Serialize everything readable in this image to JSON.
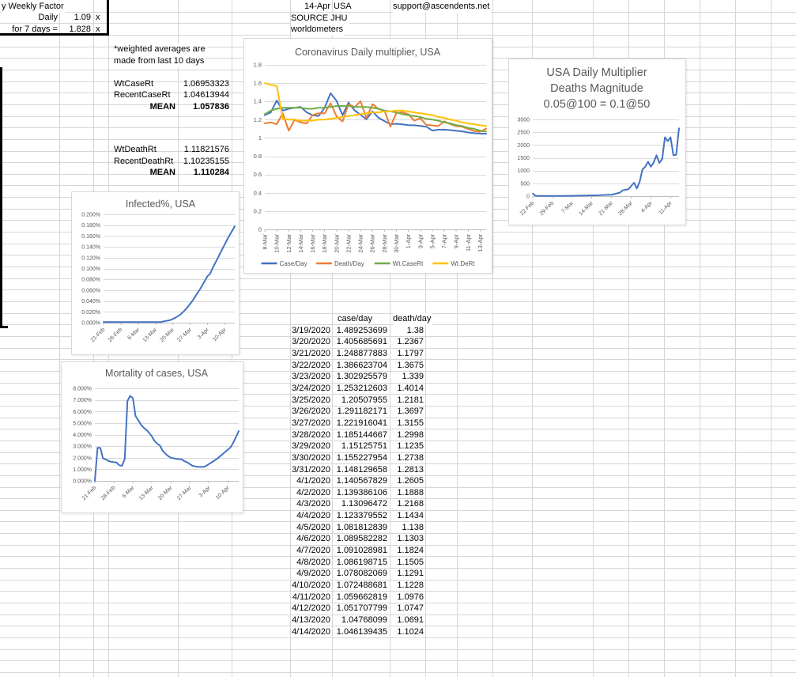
{
  "sheet": {
    "weekly_factor": {
      "title": "y Weekly Factor",
      "daily_label": "Daily",
      "daily_value": "1.09",
      "daily_unit": "x",
      "days7_label": "for 7 days =",
      "days7_value": "1.828",
      "days7_unit": "x"
    },
    "header": {
      "date": "14-Apr",
      "country": "USA",
      "support": "support@ascendents.net",
      "source": "SOURCE JHU",
      "source2": "worldometers"
    },
    "notes": {
      "line1": "*weighted averages are",
      "line2": "made from last 10 days"
    },
    "case_stats": {
      "l1": "WtCaseRt",
      "v1": "1.06953323",
      "l2": "RecentCaseRt",
      "v2": "1.04613944",
      "mean_label": "MEAN",
      "mean_value": "1.057836"
    },
    "death_stats": {
      "l1": "WtDeathRt",
      "v1": "1.11821576",
      "l2": "RecentDeathRt",
      "v2": "1.10235155",
      "mean_label": "MEAN",
      "mean_value": "1.110284"
    },
    "table": {
      "col_case": "case/day",
      "col_death": "death/day",
      "rows": [
        [
          "3/19/2020",
          "1.489253699",
          "1.38"
        ],
        [
          "3/20/2020",
          "1.405685691",
          "1.2367"
        ],
        [
          "3/21/2020",
          "1.248877883",
          "1.1797"
        ],
        [
          "3/22/2020",
          "1.386623704",
          "1.3675"
        ],
        [
          "3/23/2020",
          "1.302925579",
          "1.339"
        ],
        [
          "3/24/2020",
          "1.253212603",
          "1.4014"
        ],
        [
          "3/25/2020",
          "1.20507955",
          "1.2181"
        ],
        [
          "3/26/2020",
          "1.291182171",
          "1.3697"
        ],
        [
          "3/27/2020",
          "1.221916041",
          "1.3155"
        ],
        [
          "3/28/2020",
          "1.185144667",
          "1.2998"
        ],
        [
          "3/29/2020",
          "1.15125751",
          "1.1235"
        ],
        [
          "3/30/2020",
          "1.155227954",
          "1.2738"
        ],
        [
          "3/31/2020",
          "1.148129658",
          "1.2813"
        ],
        [
          "4/1/2020",
          "1.140567829",
          "1.2605"
        ],
        [
          "4/2/2020",
          "1.139386106",
          "1.1888"
        ],
        [
          "4/3/2020",
          "1.13096472",
          "1.2168"
        ],
        [
          "4/4/2020",
          "1.123379552",
          "1.1434"
        ],
        [
          "4/5/2020",
          "1.081812839",
          "1.138"
        ],
        [
          "4/6/2020",
          "1.089582282",
          "1.1303"
        ],
        [
          "4/7/2020",
          "1.091028981",
          "1.1824"
        ],
        [
          "4/8/2020",
          "1.086198715",
          "1.1505"
        ],
        [
          "4/9/2020",
          "1.078082069",
          "1.1291"
        ],
        [
          "4/10/2020",
          "1.072488681",
          "1.1228"
        ],
        [
          "4/11/2020",
          "1.059662819",
          "1.0976"
        ],
        [
          "4/12/2020",
          "1.051707799",
          "1.0747"
        ],
        [
          "4/13/2020",
          "1.04768099",
          "1.0691"
        ],
        [
          "4/14/2020",
          "1.046139435",
          "1.1024"
        ]
      ]
    }
  },
  "colors": {
    "case": "#4472C4",
    "death": "#ED7C31",
    "wtcase": "#70AD47",
    "wtde": "#FFC000",
    "chart_grid": "#d9d9d9",
    "axis": "#bfbfbf",
    "chart_text": "#595959",
    "sheet_grid": "#d6d6d6"
  },
  "chart_data": [
    {
      "type": "line",
      "title": "Coronavirus Daily multiplier, USA",
      "ylim": [
        0,
        1.8
      ],
      "y_ticks": [
        0,
        0.2,
        0.4,
        0.6,
        0.8,
        1,
        1.2,
        1.4,
        1.6,
        1.8
      ],
      "y_tick_labels": [
        "0",
        "0.2",
        "0.4",
        "0.6",
        "0.8",
        "1",
        "1.2",
        "1.4",
        "1.6",
        "1.8"
      ],
      "x_ticks": [
        {
          "i": 0,
          "label": "8-Mar"
        },
        {
          "i": 2,
          "label": "10-Mar"
        },
        {
          "i": 4,
          "label": "12-Mar"
        },
        {
          "i": 6,
          "label": "14-Mar"
        },
        {
          "i": 8,
          "label": "16-Mar"
        },
        {
          "i": 10,
          "label": "18-Mar"
        },
        {
          "i": 12,
          "label": "20-Mar"
        },
        {
          "i": 14,
          "label": "22-Mar"
        },
        {
          "i": 16,
          "label": "24-Mar"
        },
        {
          "i": 18,
          "label": "26-Mar"
        },
        {
          "i": 20,
          "label": "28-Mar"
        },
        {
          "i": 22,
          "label": "30-Mar"
        },
        {
          "i": 24,
          "label": "1-Apr"
        },
        {
          "i": 26,
          "label": "3-Apr"
        },
        {
          "i": 28,
          "label": "5-Apr"
        },
        {
          "i": 30,
          "label": "7-Apr"
        },
        {
          "i": 32,
          "label": "9-Apr"
        },
        {
          "i": 34,
          "label": "11-Apr"
        },
        {
          "i": 36,
          "label": "13-Apr"
        }
      ],
      "legend_position": "bottom",
      "series": [
        {
          "name": "Case/Day",
          "color": "#4472C4",
          "values": [
            1.25,
            1.28,
            1.41,
            1.3,
            1.32,
            1.33,
            1.34,
            1.28,
            1.25,
            1.24,
            1.33,
            1.489,
            1.406,
            1.249,
            1.387,
            1.303,
            1.253,
            1.205,
            1.291,
            1.222,
            1.185,
            1.151,
            1.155,
            1.148,
            1.141,
            1.139,
            1.131,
            1.123,
            1.082,
            1.09,
            1.091,
            1.086,
            1.078,
            1.072,
            1.06,
            1.052,
            1.048,
            1.046
          ]
        },
        {
          "name": "Death/Day",
          "color": "#ED7C31",
          "values": [
            1.16,
            1.17,
            1.15,
            1.27,
            1.08,
            1.2,
            1.17,
            1.16,
            1.25,
            1.27,
            1.27,
            1.38,
            1.237,
            1.18,
            1.368,
            1.339,
            1.401,
            1.218,
            1.37,
            1.316,
            1.3,
            1.124,
            1.274,
            1.281,
            1.261,
            1.189,
            1.217,
            1.143,
            1.138,
            1.13,
            1.182,
            1.151,
            1.129,
            1.123,
            1.098,
            1.075,
            1.069,
            1.102
          ]
        },
        {
          "name": "Wt.CaseRt",
          "color": "#70AD47",
          "values": [
            1.26,
            1.3,
            1.32,
            1.33,
            1.33,
            1.33,
            1.33,
            1.32,
            1.32,
            1.33,
            1.33,
            1.34,
            1.35,
            1.35,
            1.35,
            1.34,
            1.34,
            1.34,
            1.33,
            1.32,
            1.3,
            1.29,
            1.28,
            1.26,
            1.25,
            1.24,
            1.23,
            1.21,
            1.2,
            1.19,
            1.17,
            1.16,
            1.14,
            1.13,
            1.11,
            1.1,
            1.08,
            1.07
          ]
        },
        {
          "name": "Wt.DeRt",
          "color": "#FFC000",
          "values": [
            1.6,
            1.58,
            1.57,
            1.21,
            1.2,
            1.2,
            1.19,
            1.19,
            1.19,
            1.2,
            1.2,
            1.21,
            1.22,
            1.23,
            1.24,
            1.25,
            1.26,
            1.27,
            1.28,
            1.28,
            1.29,
            1.29,
            1.3,
            1.3,
            1.29,
            1.28,
            1.27,
            1.26,
            1.25,
            1.23,
            1.22,
            1.2,
            1.19,
            1.17,
            1.16,
            1.15,
            1.14,
            1.13
          ]
        }
      ]
    },
    {
      "type": "line",
      "title_lines": [
        "USA Daily Multiplier",
        "Deaths Magnitude",
        "0.05@100 = 0.1@50"
      ],
      "ylim": [
        0,
        3000
      ],
      "y_ticks": [
        0,
        500,
        1000,
        1500,
        2000,
        2500,
        3000
      ],
      "y_tick_labels": [
        "0",
        "500",
        "1000",
        "1500",
        "2000",
        "2500",
        "3000"
      ],
      "x_ticks": [
        {
          "i": 0,
          "label": "22-Feb"
        },
        {
          "i": 7,
          "label": "29-Feb"
        },
        {
          "i": 14,
          "label": "7-Mar"
        },
        {
          "i": 21,
          "label": "14-Mar"
        },
        {
          "i": 28,
          "label": "21-Mar"
        },
        {
          "i": 35,
          "label": "28-Mar"
        },
        {
          "i": 42,
          "label": "4-Apr"
        },
        {
          "i": 49,
          "label": "11-Apr"
        }
      ],
      "series": [
        {
          "name": "Deaths Magnitude",
          "color": "#4472C4",
          "values": [
            100,
            15,
            8,
            8,
            8,
            8,
            8,
            10,
            10,
            10,
            10,
            12,
            12,
            12,
            15,
            15,
            18,
            20,
            22,
            25,
            28,
            30,
            32,
            35,
            40,
            45,
            50,
            55,
            60,
            80,
            110,
            140,
            225,
            250,
            270,
            400,
            525,
            300,
            560,
            1050,
            1150,
            1344,
            1150,
            1320,
            1600,
            1300,
            1450,
            2300,
            2150,
            2300,
            1600,
            1620,
            2650
          ]
        }
      ]
    },
    {
      "type": "line",
      "title": "Infected%, USA",
      "ylim": [
        0,
        0.2
      ],
      "y_ticks": [
        0,
        0.02,
        0.04,
        0.06,
        0.08,
        0.1,
        0.12,
        0.14,
        0.16,
        0.18,
        0.2
      ],
      "y_tick_labels": [
        "0.000%",
        "0.020%",
        "0.040%",
        "0.060%",
        "0.080%",
        "0.100%",
        "0.120%",
        "0.140%",
        "0.160%",
        "0.180%",
        "0.200%"
      ],
      "x_ticks": [
        {
          "i": 0,
          "label": "21-Feb"
        },
        {
          "i": 7,
          "label": "28-Feb"
        },
        {
          "i": 14,
          "label": "6-Mar"
        },
        {
          "i": 21,
          "label": "13-Mar"
        },
        {
          "i": 28,
          "label": "20-Mar"
        },
        {
          "i": 35,
          "label": "27-Mar"
        },
        {
          "i": 42,
          "label": "3-Apr"
        },
        {
          "i": 49,
          "label": "10-Apr"
        }
      ],
      "series": [
        {
          "name": "Infected%",
          "color": "#4472C4",
          "values": [
            0.001,
            0.001,
            0.001,
            0.001,
            0.001,
            0.001,
            0.001,
            0.001,
            0.001,
            0.001,
            0.001,
            0.001,
            0.001,
            0.001,
            0.001,
            0.001,
            0.001,
            0.001,
            0.001,
            0.001,
            0.001,
            0.001,
            0.001,
            0.001,
            0.002,
            0.003,
            0.004,
            0.005,
            0.007,
            0.009,
            0.012,
            0.015,
            0.019,
            0.024,
            0.029,
            0.035,
            0.041,
            0.048,
            0.055,
            0.062,
            0.07,
            0.078,
            0.086,
            0.09,
            0.1,
            0.109,
            0.118,
            0.127,
            0.136,
            0.145,
            0.154,
            0.162,
            0.17,
            0.178
          ]
        }
      ]
    },
    {
      "type": "line",
      "title": "Mortality of cases, USA",
      "ylim": [
        0,
        8
      ],
      "y_ticks": [
        0,
        1,
        2,
        3,
        4,
        5,
        6,
        7,
        8
      ],
      "y_tick_labels": [
        "0.000%",
        "1.000%",
        "2.000%",
        "3.000%",
        "4.000%",
        "5.000%",
        "6.000%",
        "7.000%",
        "8.000%"
      ],
      "x_ticks": [
        {
          "i": 0,
          "label": "21-Feb"
        },
        {
          "i": 7,
          "label": "28-Feb"
        },
        {
          "i": 14,
          "label": "6-Mar"
        },
        {
          "i": 21,
          "label": "13-Mar"
        },
        {
          "i": 28,
          "label": "20-Mar"
        },
        {
          "i": 35,
          "label": "27-Mar"
        },
        {
          "i": 42,
          "label": "3-Apr"
        },
        {
          "i": 49,
          "label": "10-Apr"
        }
      ],
      "series": [
        {
          "name": "Mortality",
          "color": "#4472C4",
          "values": [
            0.0,
            2.85,
            2.85,
            1.95,
            1.85,
            1.72,
            1.65,
            1.62,
            1.58,
            1.35,
            1.3,
            1.9,
            6.9,
            7.35,
            7.15,
            5.6,
            5.25,
            4.85,
            4.6,
            4.4,
            4.15,
            3.85,
            3.45,
            3.2,
            3.05,
            2.6,
            2.35,
            2.15,
            2.0,
            1.95,
            1.9,
            1.88,
            1.85,
            1.7,
            1.6,
            1.45,
            1.3,
            1.25,
            1.22,
            1.2,
            1.2,
            1.3,
            1.45,
            1.6,
            1.75,
            1.9,
            2.1,
            2.3,
            2.5,
            2.7,
            2.9,
            3.3,
            3.8,
            4.3
          ]
        }
      ]
    }
  ]
}
